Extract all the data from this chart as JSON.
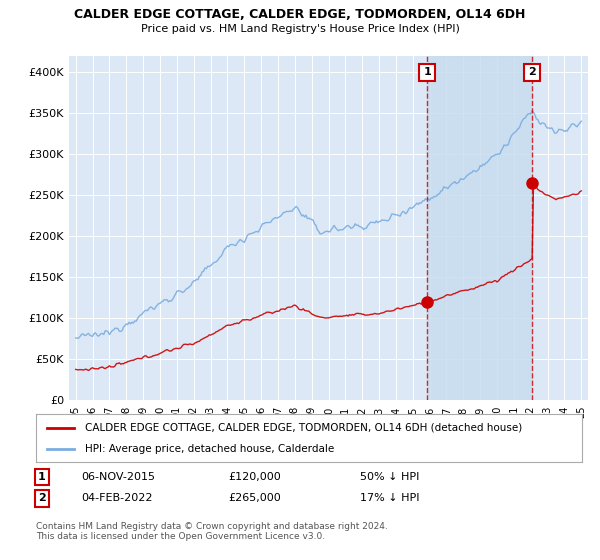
{
  "title": "CALDER EDGE COTTAGE, CALDER EDGE, TODMORDEN, OL14 6DH",
  "subtitle": "Price paid vs. HM Land Registry's House Price Index (HPI)",
  "legend_label_red": "CALDER EDGE COTTAGE, CALDER EDGE, TODMORDEN, OL14 6DH (detached house)",
  "legend_label_blue": "HPI: Average price, detached house, Calderdale",
  "annotation1_label": "1",
  "annotation1_date": "06-NOV-2015",
  "annotation1_price": "£120,000",
  "annotation1_hpi": "50% ↓ HPI",
  "annotation2_label": "2",
  "annotation2_date": "04-FEB-2022",
  "annotation2_price": "£265,000",
  "annotation2_hpi": "17% ↓ HPI",
  "footer": "Contains HM Land Registry data © Crown copyright and database right 2024.\nThis data is licensed under the Open Government Licence v3.0.",
  "ylim": [
    0,
    420000
  ],
  "yticks": [
    0,
    50000,
    100000,
    150000,
    200000,
    250000,
    300000,
    350000,
    400000
  ],
  "ytick_labels": [
    "£0",
    "£50K",
    "£100K",
    "£150K",
    "£200K",
    "£250K",
    "£300K",
    "£350K",
    "£400K"
  ],
  "color_red": "#cc0000",
  "color_blue": "#7aade0",
  "color_vline": "#cc0000",
  "background_color": "#ffffff",
  "plot_bg_color": "#dce8f5",
  "shade_color": "#c8ddf0",
  "vline1_x": 2015.85,
  "vline2_x": 2022.09,
  "sale1_x": 2015.85,
  "sale1_y": 120000,
  "sale2_x": 2022.09,
  "sale2_y": 265000,
  "xmin": 1994.6,
  "xmax": 2025.4
}
